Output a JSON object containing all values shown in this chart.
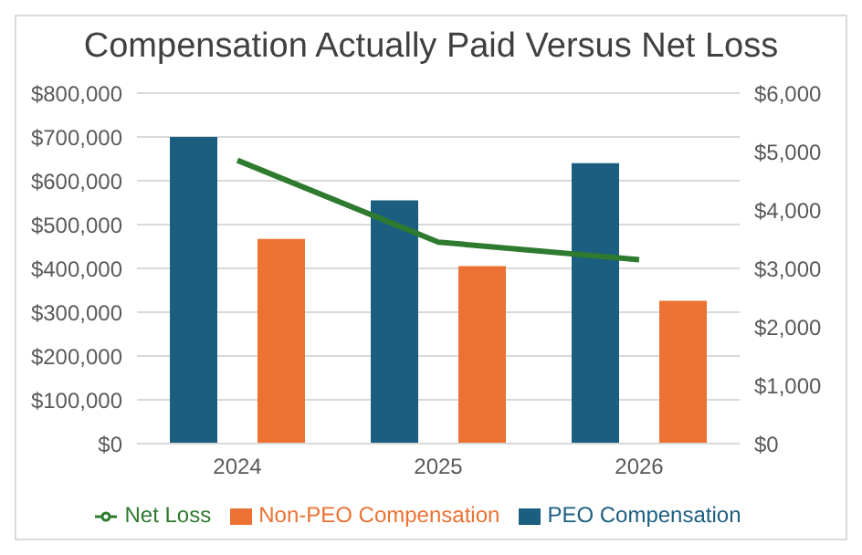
{
  "chart_data": {
    "type": "bar",
    "title": "Compensation Actually Paid Versus Net Loss",
    "categories": [
      "2024",
      "2025",
      "2026"
    ],
    "series": [
      {
        "name": "PEO Compensation",
        "color": "#1b5e80",
        "values": [
          700000,
          555000,
          640000
        ]
      },
      {
        "name": "Non-PEO Compensation",
        "color": "#eb7232",
        "values": [
          467000,
          405000,
          326000
        ]
      },
      {
        "name": "Net Loss",
        "type": "line",
        "axis": "y2",
        "color": "#2e7a2e",
        "values": [
          4850,
          3450,
          3150
        ]
      }
    ],
    "ylim": [
      0,
      800000
    ],
    "yticks": [
      {
        "value": 0,
        "label": "$0"
      },
      {
        "value": 100000,
        "label": "$100,000"
      },
      {
        "value": 200000,
        "label": "$200,000"
      },
      {
        "value": 300000,
        "label": "$300,000"
      },
      {
        "value": 400000,
        "label": "$400,000"
      },
      {
        "value": 500000,
        "label": "$500,000"
      },
      {
        "value": 600000,
        "label": "$600,000"
      },
      {
        "value": 700000,
        "label": "$700,000"
      },
      {
        "value": 800000,
        "label": "$800,000"
      }
    ],
    "y2lim": [
      0,
      6000
    ],
    "y2ticks": [
      {
        "value": 0,
        "label": "$0"
      },
      {
        "value": 1000,
        "label": "$1,000"
      },
      {
        "value": 2000,
        "label": "$2,000"
      },
      {
        "value": 3000,
        "label": "$3,000"
      },
      {
        "value": 4000,
        "label": "$4,000"
      },
      {
        "value": 5000,
        "label": "$5,000"
      },
      {
        "value": 6000,
        "label": "$6,000"
      }
    ],
    "grid": "y",
    "legend": "bottom",
    "marker": "none"
  }
}
